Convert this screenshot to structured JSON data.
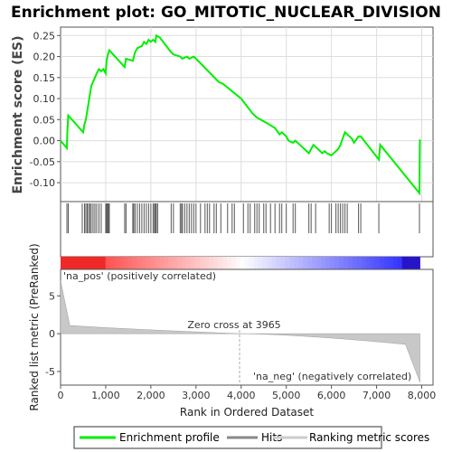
{
  "chart_data": {
    "type": "line",
    "title": "Enrichment plot: GO_MITOTIC_NUCLEAR_DIVISION",
    "top_panel": {
      "ylabel": "Enrichment score (ES)",
      "ylim": [
        -0.145,
        0.27
      ],
      "yticks": [
        "0.25",
        "0.20",
        "0.15",
        "0.10",
        "0.05",
        "0.00",
        "-0.05",
        "-0.10"
      ],
      "ytick_values": [
        0.25,
        0.2,
        0.15,
        0.1,
        0.05,
        0.0,
        -0.05,
        -0.1
      ],
      "grid": true,
      "series": [
        {
          "name": "Enrichment profile",
          "color": "#00ee00",
          "x": [
            0,
            140,
            150,
            170,
            500,
            530,
            560,
            590,
            620,
            650,
            680,
            720,
            760,
            800,
            850,
            900,
            950,
            1000,
            1020,
            1050,
            1080,
            1420,
            1450,
            1600,
            1650,
            1700,
            1800,
            1850,
            1900,
            1950,
            2000,
            2050,
            2100,
            2120,
            2200,
            2450,
            2500,
            2650,
            2700,
            2800,
            2850,
            2950,
            3000,
            3500,
            3600,
            4000,
            4250,
            4350,
            4600,
            4750,
            4850,
            4900,
            5000,
            5050,
            5150,
            5200,
            5300,
            5500,
            5550,
            5600,
            5800,
            5850,
            5900,
            6000,
            6100,
            6150,
            6200,
            6250,
            6300,
            6350,
            6450,
            6500,
            6600,
            6650,
            7050,
            7080,
            7950,
            7960
          ],
          "y": [
            0.0,
            -0.018,
            0.02,
            0.06,
            0.02,
            0.04,
            0.05,
            0.07,
            0.09,
            0.11,
            0.13,
            0.14,
            0.15,
            0.16,
            0.17,
            0.165,
            0.17,
            0.16,
            0.19,
            0.205,
            0.215,
            0.175,
            0.195,
            0.19,
            0.21,
            0.22,
            0.225,
            0.235,
            0.23,
            0.24,
            0.235,
            0.24,
            0.235,
            0.25,
            0.245,
            0.21,
            0.205,
            0.2,
            0.195,
            0.2,
            0.195,
            0.2,
            0.195,
            0.14,
            0.135,
            0.1,
            0.065,
            0.055,
            0.04,
            0.03,
            0.015,
            0.02,
            0.01,
            0.0,
            -0.005,
            0.0,
            -0.01,
            -0.03,
            -0.02,
            -0.01,
            -0.03,
            -0.025,
            -0.03,
            -0.035,
            -0.025,
            -0.02,
            -0.01,
            0.005,
            0.02,
            0.015,
            0.005,
            -0.005,
            0.01,
            0.01,
            -0.045,
            -0.01,
            -0.125,
            0.003
          ]
        }
      ],
      "hits": [
        140,
        170,
        480,
        530,
        560,
        590,
        620,
        650,
        680,
        720,
        760,
        800,
        850,
        900,
        1000,
        1020,
        1040,
        1060,
        1080,
        1420,
        1450,
        1600,
        1620,
        1650,
        1700,
        1750,
        1800,
        1850,
        1900,
        1950,
        2000,
        2050,
        2080,
        2100,
        2120,
        2150,
        2450,
        2500,
        2650,
        2680,
        2700,
        2750,
        2800,
        2850,
        2900,
        2950,
        3000,
        3100,
        3200,
        3250,
        3300,
        3400,
        3450,
        3550,
        3700,
        3800,
        3850,
        4050,
        4150,
        4200,
        4300,
        4350,
        4400,
        4500,
        4550,
        4650,
        4750,
        4850,
        4900,
        5000,
        5150,
        5200,
        5500,
        5550,
        5650,
        5950,
        6000,
        6100,
        6150,
        6200,
        6250,
        6300,
        6350,
        6600,
        6650,
        7050,
        7950
      ]
    },
    "bottom_panel": {
      "ylabel": "Ranked list metric (PreRanked)",
      "ylim": [
        -6.8,
        8.5
      ],
      "yticks": [
        "5",
        "0",
        "-5"
      ],
      "ytick_values": [
        5,
        0,
        -5
      ],
      "xlabel": "Rank in Ordered Dataset",
      "xlim": [
        0,
        8250
      ],
      "xticks": [
        "0",
        "1,000",
        "2,000",
        "3,000",
        "4,000",
        "5,000",
        "6,000",
        "7,000",
        "8,000"
      ],
      "xtick_values": [
        0,
        1000,
        2000,
        3000,
        4000,
        5000,
        6000,
        7000,
        8000
      ],
      "n_genes": 7960,
      "zero_cross": 3965,
      "annotations": {
        "zero_cross": "Zero cross at 3965",
        "pos": "'na_pos' (positively correlated)",
        "neg": "'na_neg' (negatively correlated)"
      }
    },
    "legend": {
      "placement": "bottom",
      "items": [
        {
          "label": "Enrichment profile",
          "color": "#00ee00"
        },
        {
          "label": "Hits",
          "color": "#888888"
        },
        {
          "label": "Ranking metric scores",
          "color": "#cccccc"
        }
      ]
    },
    "colors": {
      "pos_annotation": "#cc0000",
      "neg_annotation": "#0000cc",
      "grid": "#dddddd",
      "heat_pos": "#ff0000",
      "heat_neg": "#0000ff"
    }
  }
}
